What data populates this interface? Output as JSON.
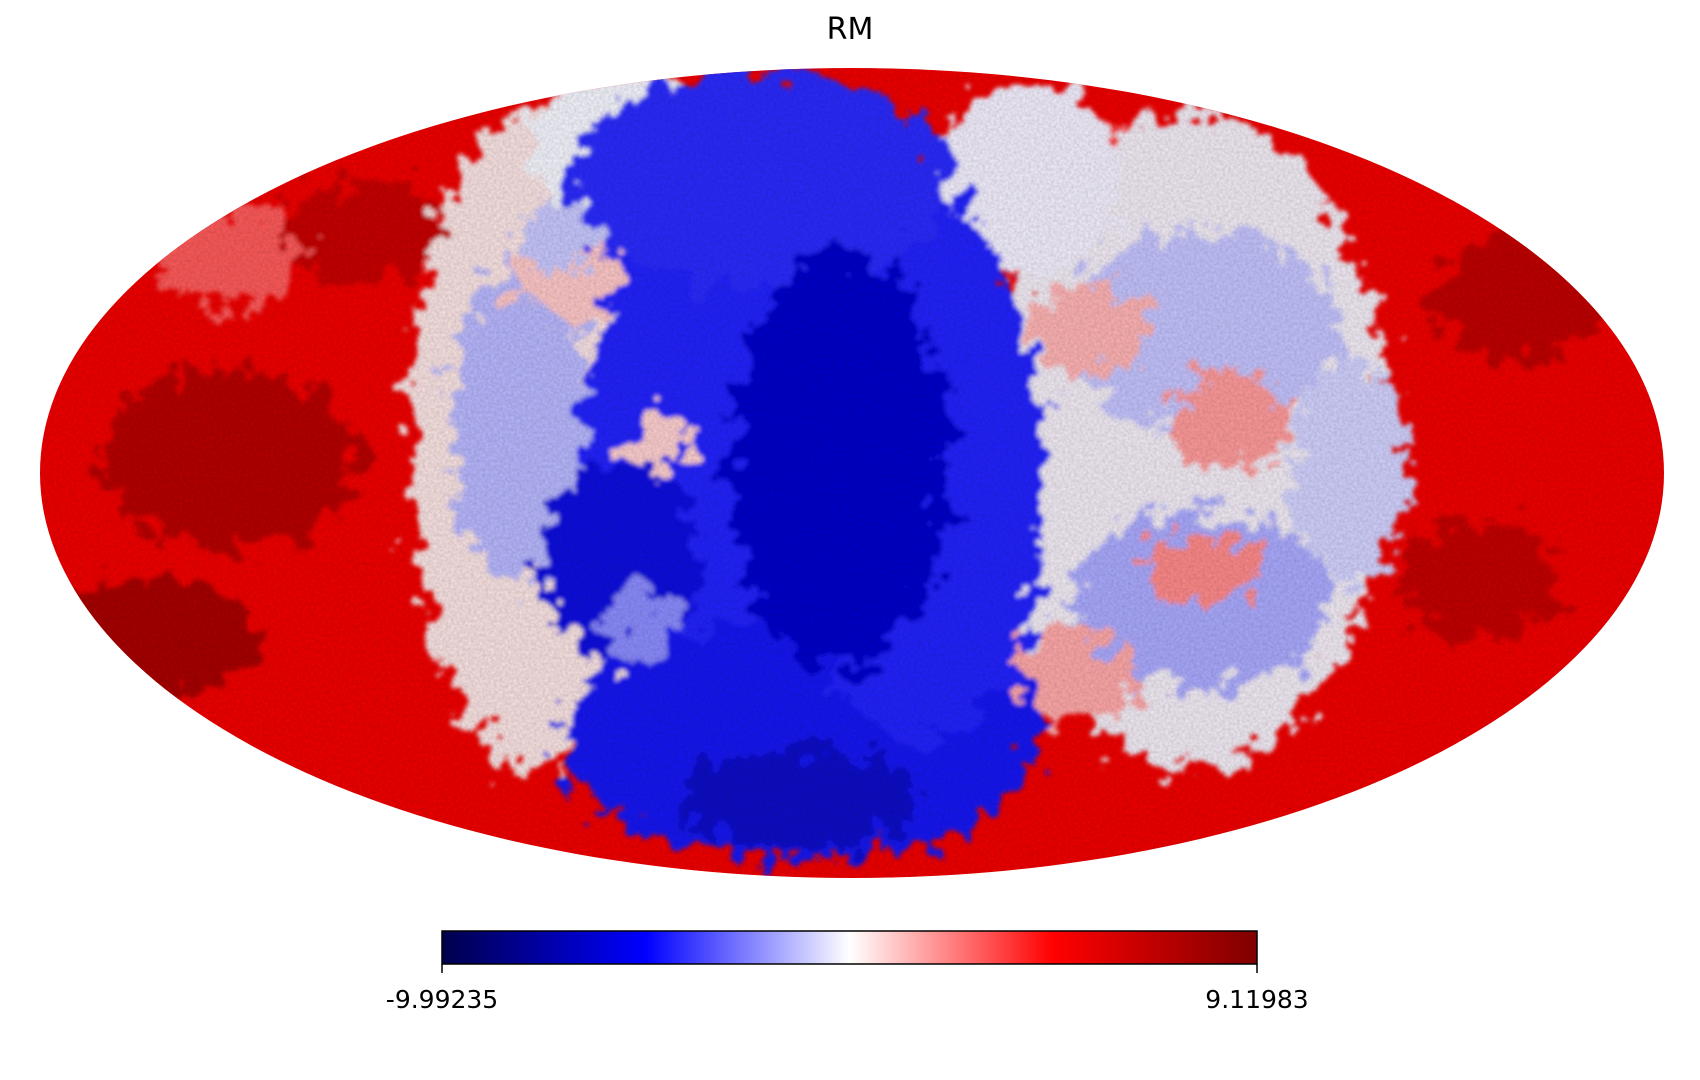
{
  "title": "RM",
  "projection": "mollweide",
  "colormap": {
    "name": "seismic",
    "stops": [
      "#00004c",
      "#0000ff",
      "#ffffff",
      "#ff0000",
      "#7f0000"
    ]
  },
  "colorbar": {
    "min": "-9.99235",
    "max": "9.11983",
    "min_value": -9.99235,
    "max_value": 9.11983
  },
  "chart_data": {
    "type": "heatmap",
    "title": "RM",
    "value_range": [
      -9.99235,
      9.11983
    ],
    "description_structure": "full-sky Mollweide map; positive (red) values near both longitude edges, negative (blue) values in central longitudes, patchy mixed values in between"
  }
}
